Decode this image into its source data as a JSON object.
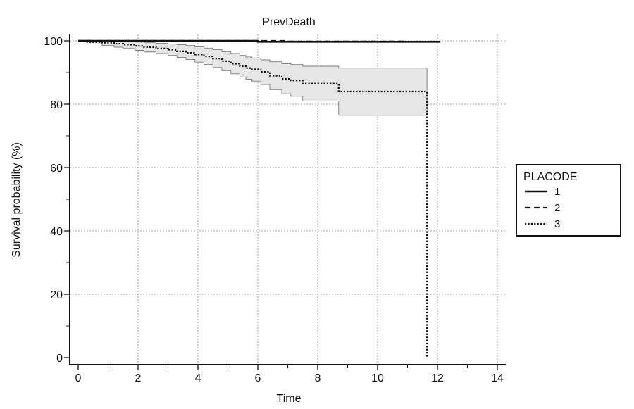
{
  "chart_data": {
    "type": "line",
    "title": "PrevDeath",
    "xlabel": "Time",
    "ylabel": "Survival probability (%)",
    "xlim": [
      0,
      14
    ],
    "ylim": [
      0,
      100
    ],
    "xticks": [
      0,
      2,
      4,
      6,
      8,
      10,
      12,
      14
    ],
    "yticks": [
      0,
      20,
      40,
      60,
      80,
      100
    ],
    "grid": true,
    "legend": {
      "title": "PLACODE",
      "placement": "right",
      "entries": [
        {
          "label": "1",
          "style": "solid"
        },
        {
          "label": "2",
          "style": "dashed"
        },
        {
          "label": "3",
          "style": "dotted"
        }
      ]
    },
    "series": [
      {
        "name": "1",
        "style": "solid",
        "color": "#111111",
        "x": [
          0,
          3.9,
          6.0,
          12.1
        ],
        "y": [
          100,
          100,
          99.7,
          99.7
        ]
      },
      {
        "name": "2",
        "style": "dashed",
        "color": "#111111",
        "x": [
          0,
          5.5,
          7.0,
          10.9
        ],
        "y": [
          100,
          100,
          99.8,
          99.8
        ]
      },
      {
        "name": "3",
        "style": "dotted",
        "color": "#111111",
        "x": [
          0,
          0.3,
          0.8,
          1.2,
          1.5,
          1.9,
          2.2,
          2.6,
          3.0,
          3.3,
          3.6,
          3.9,
          4.2,
          4.5,
          4.8,
          5.1,
          5.4,
          5.6,
          5.8,
          6.1,
          6.4,
          6.8,
          7.1,
          7.5,
          8.7,
          11.65,
          11.65
        ],
        "y": [
          100,
          99.6,
          99.4,
          99.1,
          98.8,
          98.4,
          98.0,
          97.6,
          97.2,
          96.7,
          96.2,
          95.7,
          95.1,
          94.4,
          93.6,
          92.8,
          92.0,
          91.4,
          91.0,
          90.2,
          89.0,
          88.0,
          87.5,
          86.5,
          84.0,
          84.0,
          0
        ],
        "ci_upper": [
          100,
          100,
          100,
          100,
          99.8,
          99.6,
          99.4,
          99.2,
          99.0,
          98.8,
          98.5,
          98.1,
          97.7,
          97.2,
          96.6,
          96.0,
          95.4,
          94.9,
          94.6,
          94.0,
          93.4,
          92.8,
          92.5,
          92.0,
          91.4,
          91.4
        ],
        "ci_lower": [
          100,
          99.0,
          98.5,
          98.0,
          97.6,
          97.0,
          96.5,
          96.0,
          95.4,
          94.8,
          94.1,
          93.3,
          92.5,
          91.6,
          90.6,
          89.6,
          88.6,
          87.9,
          87.3,
          86.2,
          84.6,
          83.3,
          82.5,
          81.0,
          76.5,
          76.5
        ]
      }
    ]
  }
}
